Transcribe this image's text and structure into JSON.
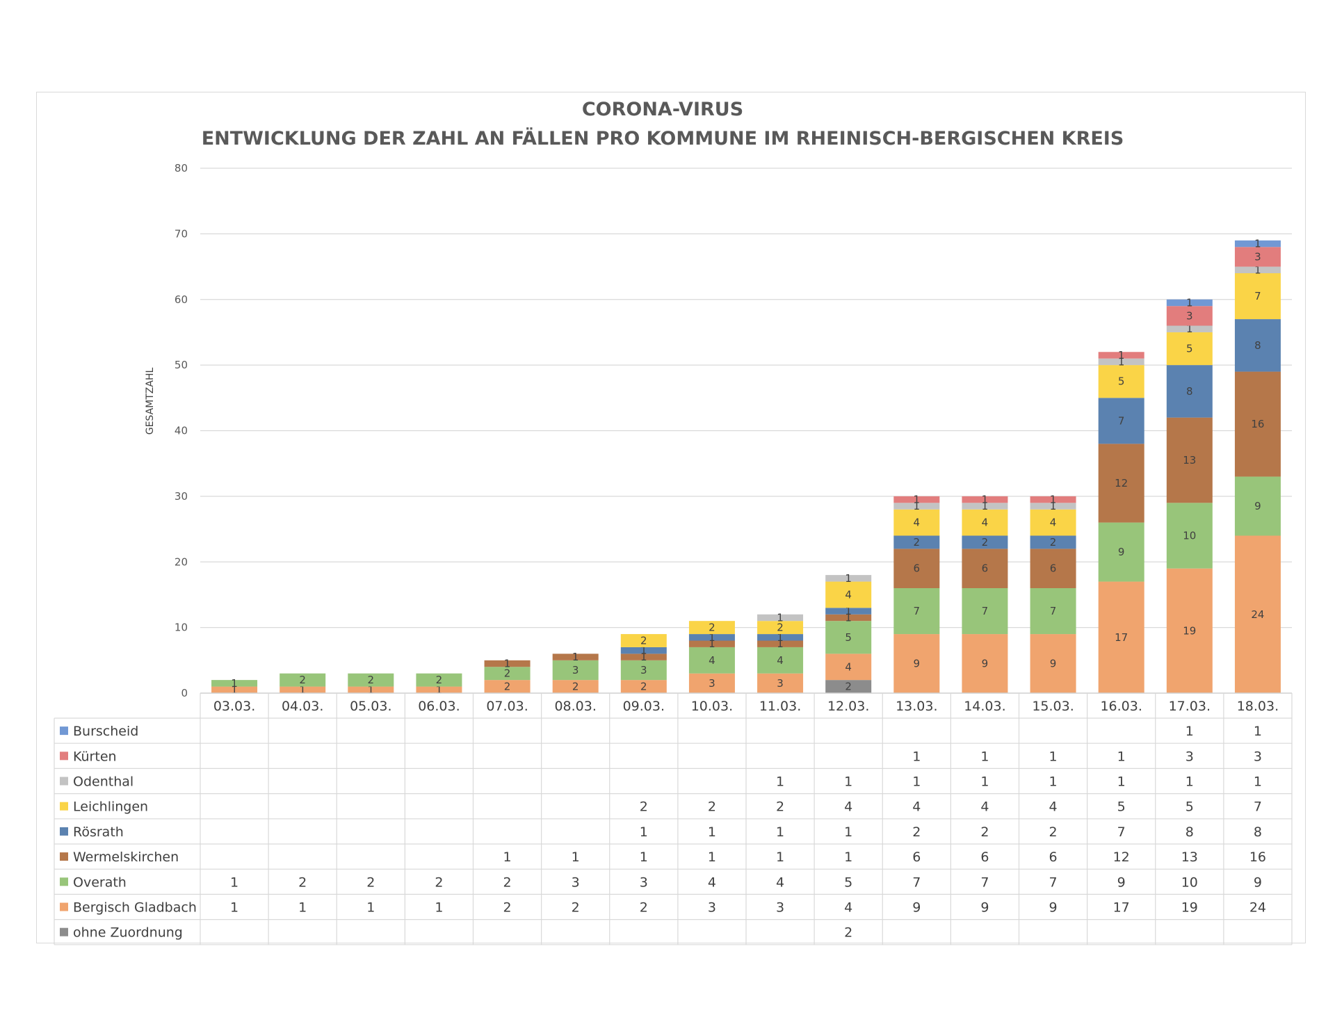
{
  "chart_data": {
    "type": "bar",
    "stacked": true,
    "title": "CORONA-VIRUS",
    "subtitle": "ENTWICKLUNG DER ZAHL AN FÄLLEN PRO KOMMUNE IM RHEINISCH-BERGISCHEN KREIS",
    "xlabel": "",
    "ylabel": "GESAMTZAHL",
    "ylim": [
      0,
      80
    ],
    "yticks": [
      "0",
      "10",
      "20",
      "30",
      "40",
      "50",
      "60",
      "70",
      "80"
    ],
    "grid": true,
    "legend": "data-table",
    "categories": [
      "03.03.",
      "04.03.",
      "05.03.",
      "06.03.",
      "07.03.",
      "08.03.",
      "09.03.",
      "10.03.",
      "11.03.",
      "12.03.",
      "13.03.",
      "14.03.",
      "15.03.",
      "16.03.",
      "17.03.",
      "18.03."
    ],
    "series": [
      {
        "name": "ohne Zuordnung",
        "color": "#8c8c8c",
        "values": [
          null,
          null,
          null,
          null,
          null,
          null,
          null,
          null,
          null,
          2,
          null,
          null,
          null,
          null,
          null,
          null
        ]
      },
      {
        "name": "Bergisch Gladbach",
        "color": "#f0a46e",
        "values": [
          1,
          1,
          1,
          1,
          2,
          2,
          2,
          3,
          3,
          4,
          9,
          9,
          9,
          17,
          19,
          24
        ]
      },
      {
        "name": "Overath",
        "color": "#98c57a",
        "values": [
          1,
          2,
          2,
          2,
          2,
          3,
          3,
          4,
          4,
          5,
          7,
          7,
          7,
          9,
          10,
          9
        ]
      },
      {
        "name": "Wermelskirchen",
        "color": "#b5774a",
        "values": [
          null,
          null,
          null,
          null,
          1,
          1,
          1,
          1,
          1,
          1,
          6,
          6,
          6,
          12,
          13,
          16
        ]
      },
      {
        "name": "Rösrath",
        "color": "#5b82b0",
        "values": [
          null,
          null,
          null,
          null,
          null,
          null,
          1,
          1,
          1,
          1,
          2,
          2,
          2,
          7,
          8,
          8
        ]
      },
      {
        "name": "Leichlingen",
        "color": "#fad447",
        "values": [
          null,
          null,
          null,
          null,
          null,
          null,
          2,
          2,
          2,
          4,
          4,
          4,
          4,
          5,
          5,
          7
        ]
      },
      {
        "name": "Odenthal",
        "color": "#c3c3c3",
        "values": [
          null,
          null,
          null,
          null,
          null,
          null,
          null,
          null,
          1,
          1,
          1,
          1,
          1,
          1,
          1,
          1
        ]
      },
      {
        "name": "Kürten",
        "color": "#e27d7d",
        "values": [
          null,
          null,
          null,
          null,
          null,
          null,
          null,
          null,
          null,
          null,
          1,
          1,
          1,
          1,
          3,
          3
        ]
      },
      {
        "name": "Burscheid",
        "color": "#7198d4",
        "values": [
          null,
          null,
          null,
          null,
          null,
          null,
          null,
          null,
          null,
          null,
          null,
          null,
          null,
          null,
          1,
          1
        ]
      }
    ]
  }
}
